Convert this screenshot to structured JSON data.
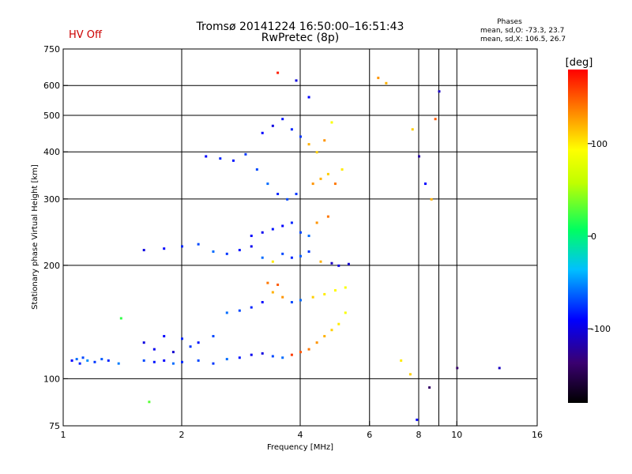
{
  "header": {
    "status": "HV Off",
    "title_line1": "Tromsø 20141224 16:50:00–16:51:43",
    "title_line2": "RwPretec (8p)",
    "stats_heading": "Phases",
    "stats_o": "mean, sd,O: -73.3, 23.7",
    "stats_x": "mean, sd,X: 106.5, 26.7"
  },
  "colors": {
    "status_text": "#cc0000",
    "grid": "#000000",
    "background": "#ffffff"
  },
  "chart_data": {
    "type": "scatter",
    "title": "Tromsø 20141224 16:50:00–16:51:43",
    "subtitle": "RwPretec (8p)",
    "xlabel": "Frequency [MHz]",
    "ylabel": "Stationary phase Virtual Height [km]",
    "x_scale": "log",
    "y_scale": "log",
    "xlim": [
      1,
      16
    ],
    "ylim": [
      75,
      750
    ],
    "x_ticks": [
      "1",
      "2",
      "4",
      "6",
      "8",
      "10",
      "16"
    ],
    "x_tick_values": [
      1,
      2,
      4,
      6,
      8,
      10,
      16
    ],
    "y_ticks": [
      "750",
      "600",
      "500",
      "400",
      "300",
      "200",
      "100",
      "75"
    ],
    "y_tick_values": [
      750,
      600,
      500,
      400,
      300,
      200,
      100,
      75
    ],
    "grid": true,
    "colorbar": {
      "label": "[deg]",
      "range": [
        -180,
        180
      ],
      "ticks": [
        "100",
        "0",
        "-100"
      ],
      "tick_values": [
        100,
        0,
        -100
      ]
    },
    "series": [
      {
        "points": [
          [
            1.05,
            112,
            -90
          ],
          [
            1.08,
            113,
            -60
          ],
          [
            1.1,
            110,
            -80
          ],
          [
            1.12,
            114,
            -70
          ],
          [
            1.15,
            112,
            -50
          ],
          [
            1.2,
            111,
            -75
          ],
          [
            1.25,
            113,
            -65
          ],
          [
            1.3,
            112,
            -80
          ],
          [
            1.38,
            110,
            -55
          ],
          [
            1.6,
            112,
            -70
          ],
          [
            1.7,
            111,
            -85
          ],
          [
            1.8,
            112,
            -90
          ],
          [
            1.9,
            110,
            -60
          ],
          [
            2.0,
            111,
            -80
          ],
          [
            2.2,
            112,
            -70
          ],
          [
            2.4,
            110,
            -75
          ],
          [
            2.6,
            113,
            -60
          ],
          [
            2.8,
            114,
            -85
          ],
          [
            3.0,
            116,
            -95
          ],
          [
            3.2,
            117,
            -100
          ],
          [
            3.4,
            115,
            -70
          ],
          [
            3.6,
            114,
            -60
          ],
          [
            3.8,
            116,
            160
          ],
          [
            4.0,
            118,
            150
          ],
          [
            4.2,
            120,
            140
          ],
          [
            4.4,
            125,
            130
          ],
          [
            4.6,
            130,
            120
          ],
          [
            4.8,
            135,
            110
          ],
          [
            5.0,
            140,
            100
          ],
          [
            5.2,
            150,
            90
          ],
          [
            1.6,
            125,
            -100
          ],
          [
            1.8,
            130,
            -90
          ],
          [
            2.0,
            128,
            -80
          ],
          [
            2.2,
            125,
            -85
          ],
          [
            2.4,
            130,
            -70
          ],
          [
            1.7,
            120,
            -95
          ],
          [
            1.9,
            118,
            -105
          ],
          [
            2.1,
            122,
            -75
          ],
          [
            2.6,
            150,
            -60
          ],
          [
            2.8,
            152,
            -70
          ],
          [
            3.0,
            155,
            -80
          ],
          [
            3.2,
            160,
            -90
          ],
          [
            3.4,
            170,
            120
          ],
          [
            3.6,
            165,
            130
          ],
          [
            3.8,
            160,
            -70
          ],
          [
            4.0,
            162,
            -60
          ],
          [
            4.3,
            165,
            110
          ],
          [
            4.6,
            168,
            100
          ],
          [
            4.9,
            172,
            95
          ],
          [
            5.2,
            175,
            90
          ],
          [
            3.3,
            180,
            140
          ],
          [
            3.5,
            178,
            150
          ],
          [
            1.6,
            220,
            -100
          ],
          [
            1.8,
            222,
            -90
          ],
          [
            2.0,
            225,
            -80
          ],
          [
            2.2,
            228,
            -70
          ],
          [
            2.4,
            218,
            -60
          ],
          [
            2.6,
            215,
            -75
          ],
          [
            2.8,
            220,
            -85
          ],
          [
            3.0,
            225,
            -95
          ],
          [
            3.2,
            210,
            -60
          ],
          [
            3.4,
            205,
            100
          ],
          [
            3.6,
            215,
            -70
          ],
          [
            3.8,
            210,
            -80
          ],
          [
            4.0,
            212,
            -65
          ],
          [
            4.2,
            218,
            -75
          ],
          [
            4.5,
            205,
            120
          ],
          [
            4.8,
            203,
            -110
          ],
          [
            5.0,
            200,
            -100
          ],
          [
            5.3,
            202,
            -105
          ],
          [
            3.0,
            240,
            -90
          ],
          [
            3.2,
            245,
            -95
          ],
          [
            3.4,
            250,
            -85
          ],
          [
            3.6,
            255,
            -90
          ],
          [
            3.8,
            260,
            -80
          ],
          [
            4.0,
            245,
            -70
          ],
          [
            4.2,
            240,
            -60
          ],
          [
            4.4,
            260,
            130
          ],
          [
            4.7,
            270,
            140
          ],
          [
            2.3,
            390,
            -90
          ],
          [
            2.5,
            385,
            -80
          ],
          [
            2.7,
            380,
            -85
          ],
          [
            2.9,
            395,
            -75
          ],
          [
            3.1,
            360,
            -70
          ],
          [
            3.3,
            330,
            -60
          ],
          [
            3.5,
            310,
            -80
          ],
          [
            3.7,
            300,
            -70
          ],
          [
            3.9,
            310,
            -75
          ],
          [
            4.3,
            330,
            130
          ],
          [
            4.5,
            340,
            120
          ],
          [
            4.7,
            350,
            110
          ],
          [
            4.9,
            330,
            140
          ],
          [
            5.1,
            360,
            100
          ],
          [
            3.2,
            450,
            -90
          ],
          [
            3.4,
            470,
            -100
          ],
          [
            3.6,
            490,
            -85
          ],
          [
            3.8,
            460,
            -80
          ],
          [
            4.0,
            440,
            -75
          ],
          [
            4.2,
            420,
            120
          ],
          [
            4.4,
            400,
            110
          ],
          [
            4.6,
            430,
            130
          ],
          [
            4.8,
            480,
            90
          ],
          [
            3.5,
            650,
            170
          ],
          [
            3.9,
            620,
            -100
          ],
          [
            4.2,
            560,
            -90
          ],
          [
            6.3,
            630,
            130
          ],
          [
            6.6,
            610,
            120
          ],
          [
            7.7,
            460,
            110
          ],
          [
            8.0,
            390,
            -120
          ],
          [
            8.3,
            330,
            -90
          ],
          [
            8.6,
            300,
            120
          ],
          [
            8.8,
            490,
            150
          ],
          [
            9.0,
            580,
            -110
          ],
          [
            10.0,
            107,
            -140
          ],
          [
            12.8,
            107,
            -110
          ],
          [
            7.2,
            112,
            100
          ],
          [
            7.6,
            103,
            110
          ],
          [
            8.5,
            95,
            -140
          ],
          [
            7.9,
            78,
            -90
          ],
          [
            1.4,
            145,
            20
          ],
          [
            1.65,
            87,
            30
          ]
        ]
      }
    ]
  }
}
